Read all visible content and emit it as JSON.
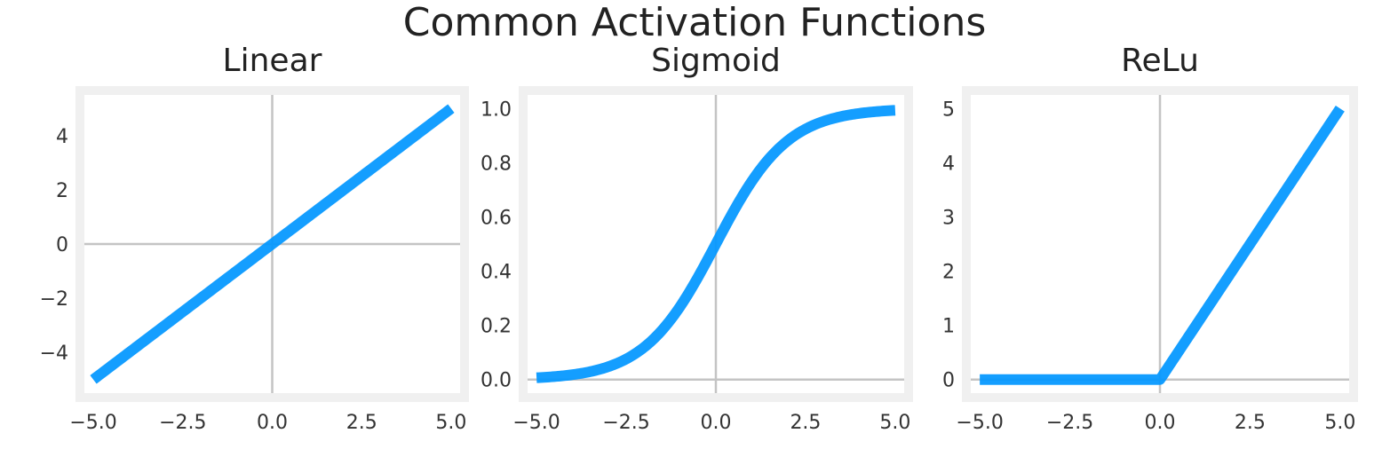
{
  "figure": {
    "title": "Common Activation Functions",
    "line_color": "#0096ff",
    "frame_color": "#f0f0f0",
    "zero_line_color": "#c4c4c4"
  },
  "chart_data": [
    {
      "type": "line",
      "title": "Linear",
      "function": "linear",
      "xlabel": "",
      "ylabel": "",
      "xlim": [
        -5.25,
        5.25
      ],
      "ylim": [
        -5.5,
        5.5
      ],
      "xticks": [
        -5.0,
        -2.5,
        0.0,
        2.5,
        5.0
      ],
      "xtick_labels": [
        "−5.0",
        "−2.5",
        "0.0",
        "2.5",
        "5.0"
      ],
      "yticks": [
        -4,
        -2,
        0,
        2,
        4
      ],
      "ytick_labels": [
        "−4",
        "−2",
        "0",
        "2",
        "4"
      ],
      "x": [
        -5.0,
        -2.5,
        0.0,
        2.5,
        5.0
      ],
      "y": [
        -5.0,
        -2.5,
        0.0,
        2.5,
        5.0
      ],
      "grid": false,
      "zero_lines": true
    },
    {
      "type": "line",
      "title": "Sigmoid",
      "function": "sigmoid",
      "xlabel": "",
      "ylabel": "",
      "xlim": [
        -5.25,
        5.25
      ],
      "ylim": [
        -0.05,
        1.05
      ],
      "xticks": [
        -5.0,
        -2.5,
        0.0,
        2.5,
        5.0
      ],
      "xtick_labels": [
        "−5.0",
        "−2.5",
        "0.0",
        "2.5",
        "5.0"
      ],
      "yticks": [
        0.0,
        0.2,
        0.4,
        0.6,
        0.8,
        1.0
      ],
      "ytick_labels": [
        "0.0",
        "0.2",
        "0.4",
        "0.6",
        "0.8",
        "1.0"
      ],
      "x": [
        -5.0,
        -4.0,
        -3.0,
        -2.0,
        -1.0,
        0.0,
        1.0,
        2.0,
        3.0,
        4.0,
        5.0
      ],
      "y": [
        0.007,
        0.018,
        0.047,
        0.119,
        0.269,
        0.5,
        0.731,
        0.881,
        0.953,
        0.982,
        0.993
      ],
      "grid": false,
      "zero_lines": true
    },
    {
      "type": "line",
      "title": "ReLu",
      "function": "relu",
      "xlabel": "",
      "ylabel": "",
      "xlim": [
        -5.25,
        5.25
      ],
      "ylim": [
        -0.25,
        5.25
      ],
      "xticks": [
        -5.0,
        -2.5,
        0.0,
        2.5,
        5.0
      ],
      "xtick_labels": [
        "−5.0",
        "−2.5",
        "0.0",
        "2.5",
        "5.0"
      ],
      "yticks": [
        0,
        1,
        2,
        3,
        4,
        5
      ],
      "ytick_labels": [
        "0",
        "1",
        "2",
        "3",
        "4",
        "5"
      ],
      "x": [
        -5.0,
        -2.5,
        0.0,
        2.5,
        5.0
      ],
      "y": [
        0.0,
        0.0,
        0.0,
        2.5,
        5.0
      ],
      "grid": false,
      "zero_lines": true
    }
  ]
}
